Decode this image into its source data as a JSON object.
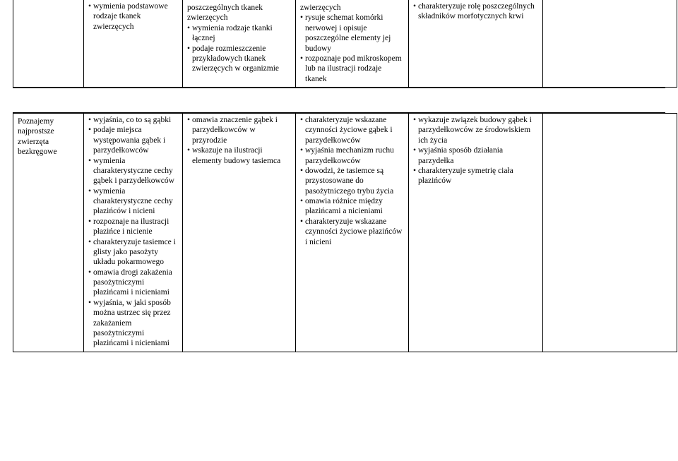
{
  "table1": {
    "r1c2": [
      "wymienia podstawowe rodzaje tkanek zwierzęcych"
    ],
    "r1c3": [
      "poszczególnych tkanek zwierzęcych",
      "wymienia rodzaje tkanki łącznej",
      "podaje rozmieszczenie przykładowych tkanek zwierzęcych w organizmie"
    ],
    "r1c3_firstPlain": true,
    "r1c4": [
      "zwierzęcych",
      "rysuje schemat komórki nerwowej i opisuje poszczególne elementy jej budowy",
      "rozpoznaje pod mikroskopem lub na ilustracji rodzaje tkanek"
    ],
    "r1c4_firstPlain": true,
    "r1c5": [
      "charakteryzuje rolę poszczególnych składników morfotycznych krwi"
    ]
  },
  "table2": {
    "r1c1": "Poznajemy najprostsze zwierzęta bezkręgowe",
    "r1c2": [
      "wyjaśnia, co to są gąbki",
      "podaje miejsca występowania gąbek i parzydełkowców",
      "wymienia charakterystyczne cechy gąbek i parzydełkowców",
      "wymienia charakterystyczne cechy płazińców i nicieni",
      "rozpoznaje na ilustracji płazińce i nicienie",
      "charakteryzuje tasiemce i glisty jako pasożyty układu pokarmowego",
      "omawia drogi zakażenia pasożytniczymi płazińcami i nicieniami",
      "wyjaśnia, w jaki sposób można ustrzec się przez zakażaniem pasożytniczymi płazińcami i nicieniami"
    ],
    "r1c3": [
      "omawia znaczenie gąbek i parzydełkowców w przyrodzie",
      "wskazuje na ilustracji elementy budowy tasiemca"
    ],
    "r1c4": [
      "charakteryzuje wskazane czynności życiowe gąbek i parzydełkowców",
      "wyjaśnia mechanizm ruchu parzydełkowców",
      "dowodzi, że tasiemce są przystosowane do pasożytniczego trybu życia",
      "omawia różnice między płazińcami a nicieniami",
      "charakteryzuje wskazane czynności życiowe płazińców i nicieni"
    ],
    "r1c5": [
      "wykazuje związek budowy gąbek i parzydełkowców ze środowiskiem ich życia",
      "wyjaśnia sposób działania parzydełka",
      "charakteryzuje symetrię ciała płazińców"
    ]
  }
}
